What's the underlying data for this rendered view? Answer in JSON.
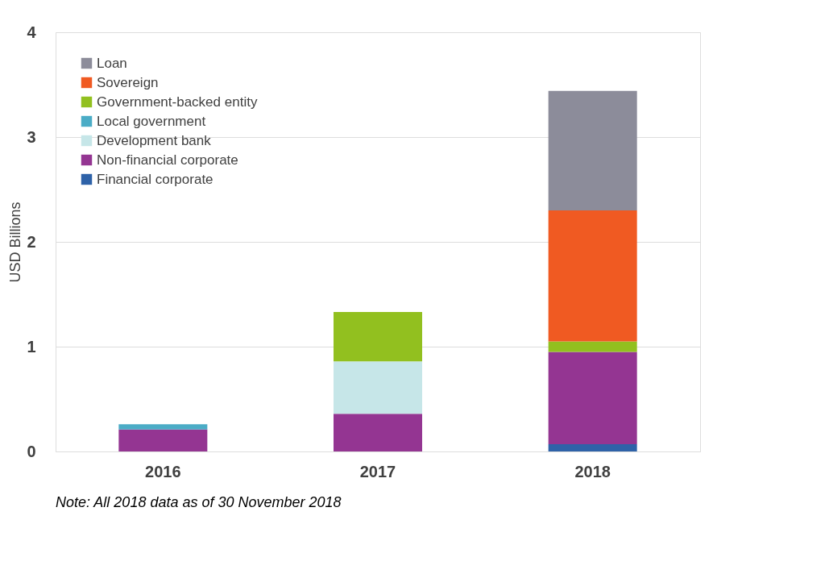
{
  "chart_data": {
    "type": "bar",
    "stacked": true,
    "ylabel": "USD Billions",
    "categories": [
      "2016",
      "2017",
      "2018"
    ],
    "series": [
      {
        "name": "Financial corporate",
        "color": "#2e62a8",
        "values": [
          null,
          null,
          0.07
        ]
      },
      {
        "name": "Non-financial corporate",
        "color": "#943592",
        "values": [
          0.21,
          0.36,
          0.88
        ]
      },
      {
        "name": "Development bank",
        "color": "#c6e6e8",
        "values": [
          null,
          0.5,
          null
        ]
      },
      {
        "name": "Local government",
        "color": "#4bacc6",
        "values": [
          0.05,
          null,
          null
        ]
      },
      {
        "name": "Government-backed entity",
        "color": "#92c01f",
        "values": [
          null,
          0.47,
          0.1
        ]
      },
      {
        "name": "Sovereign",
        "color": "#f05a22",
        "values": [
          null,
          null,
          1.25
        ]
      },
      {
        "name": "Loan",
        "color": "#8c8c9a",
        "values": [
          null,
          null,
          1.14
        ]
      }
    ],
    "ylim": [
      0,
      4
    ],
    "yticks": [
      0,
      1,
      2,
      3,
      4
    ],
    "grid": "y",
    "legend": "top left",
    "annotations": [
      "Note: All 2018 data as of 30 November 2018"
    ]
  }
}
